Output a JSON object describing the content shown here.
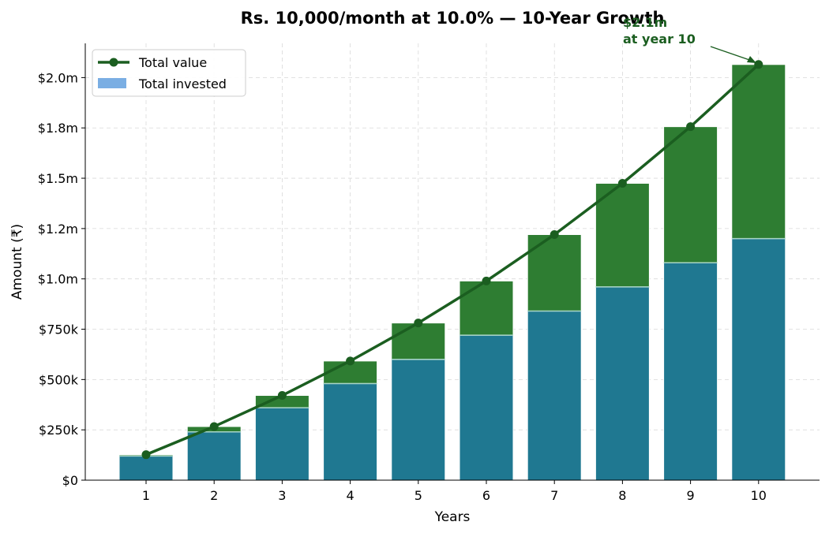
{
  "chart_data": {
    "type": "bar",
    "title": "Rs. 10,000/month at 10.0% — 10-Year Growth",
    "xlabel": "Years",
    "ylabel": "Amount (₹)",
    "categories": [
      "1",
      "2",
      "3",
      "4",
      "5",
      "6",
      "7",
      "8",
      "9",
      "10"
    ],
    "ylim": [
      0,
      2170000
    ],
    "yticks": [
      0,
      250000,
      500000,
      750000,
      1000000,
      1250000,
      1500000,
      1750000,
      2000000
    ],
    "ytick_labels": [
      "$0",
      "$250k",
      "$500k",
      "$750k",
      "$1.0m",
      "$1.2m",
      "$1.5m",
      "$1.8m",
      "$2.0m"
    ],
    "grid": true,
    "legend_position": "top-left",
    "series": [
      {
        "name": "Total invested",
        "kind": "bar",
        "color": "#1f7891",
        "legend_color": "#7aaee3",
        "values": [
          120000,
          240000,
          360000,
          480000,
          600000,
          720000,
          840000,
          960000,
          1080000,
          1200000
        ]
      },
      {
        "name": "Total value",
        "kind": "line",
        "color": "#1b5e20",
        "bar_color": "#2e7d32",
        "values": [
          126600,
          266500,
          421000,
          592000,
          780900,
          989600,
          1220100,
          1474800,
          1756200,
          2065000
        ]
      }
    ],
    "annotation": {
      "text_lines": [
        "$2.1m",
        "at year 10"
      ],
      "x": "10",
      "y": 2065000,
      "color": "#1b5e20"
    }
  }
}
